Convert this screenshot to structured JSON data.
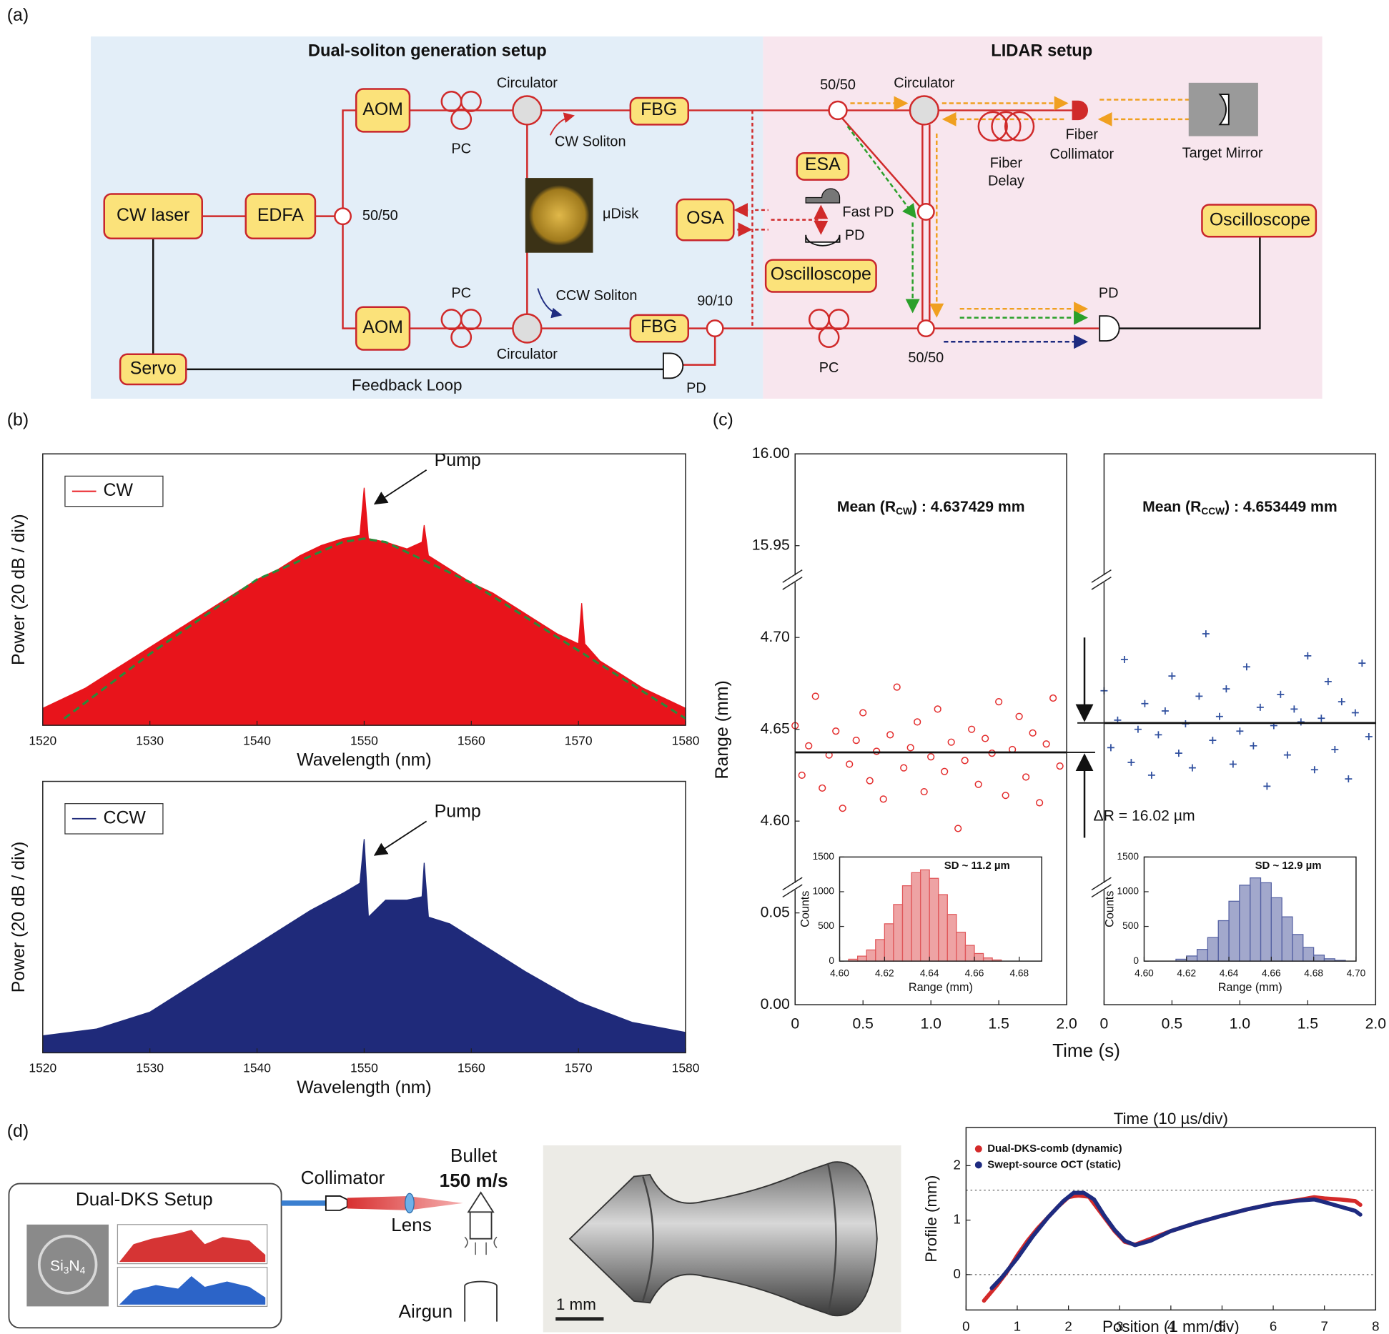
{
  "panel_labels": [
    "(a)",
    "(b)",
    "(c)",
    "(d)"
  ],
  "diagram": {
    "labels": [
      "Dual-soliton generation setup",
      "LIDAR setup",
      "CW laser",
      "EDFA",
      "50/50",
      "AOM",
      "AOM",
      "PC",
      "PC",
      "Circulator",
      "Circulator",
      "CW Soliton",
      "CCW Soliton",
      "μDisk",
      "FBG",
      "FBG",
      "90/10",
      "Servo",
      "Feedback Loop",
      "PD",
      "OSA",
      "ESA",
      "Fast PD",
      "PD",
      "Oscilloscope",
      "50/50",
      "Circulator",
      "Fiber",
      "Delay",
      "Fiber",
      "Collimator",
      "Target Mirror",
      "Oscilloscope",
      "PC",
      "50/50",
      "PD"
    ]
  },
  "panel_d": {
    "setup_title": "Dual-DKS Setup",
    "chip": [
      "Si",
      "3",
      "N",
      "4"
    ],
    "collimator": "Collimator",
    "lens": "Lens",
    "bullet": "Bullet",
    "speed": "150 m/s",
    "airgun": "Airgun",
    "photo_scale": "1 mm"
  },
  "chart_data": [
    {
      "type": "area",
      "xlabel": "Wavelength (nm)",
      "ylabel": "Power (20 dB / div)",
      "annotation": "Pump",
      "xlim": [
        1520,
        1580
      ],
      "xticks": [
        1520,
        1530,
        1540,
        1550,
        1560,
        1570,
        1580
      ],
      "ylim": [
        0,
        80
      ],
      "series": [
        {
          "name": "CW",
          "color": "#e8141b",
          "x": [
            1520,
            1522,
            1524,
            1526,
            1528,
            1530,
            1532,
            1534,
            1536,
            1538,
            1540,
            1542,
            1544,
            1546,
            1548,
            1549.6,
            1550,
            1550.4,
            1552,
            1554,
            1555.4,
            1555.6,
            1556,
            1558,
            1560,
            1562,
            1564,
            1566,
            1568,
            1570,
            1570.3,
            1570.6,
            1572,
            1574,
            1576,
            1578,
            1580
          ],
          "values": [
            5,
            8,
            11,
            15,
            19,
            23,
            27,
            31,
            35,
            39,
            43,
            46,
            50,
            53,
            55,
            56,
            70,
            55,
            54,
            52,
            54,
            59,
            50,
            46,
            42,
            39,
            35,
            31,
            27,
            24,
            36,
            24,
            19,
            15,
            11,
            8,
            5
          ]
        }
      ],
      "fit": {
        "color": "#2a8a3a",
        "x": [
          1522,
          1530,
          1540,
          1548,
          1550,
          1552,
          1560,
          1570,
          1580
        ],
        "values": [
          2,
          21,
          43,
          54,
          55,
          54,
          42,
          22,
          2
        ]
      }
    },
    {
      "type": "area",
      "xlabel": "Wavelength (nm)",
      "ylabel": "Power (20 dB / div)",
      "annotation": "Pump",
      "xlim": [
        1520,
        1580
      ],
      "xticks": [
        1520,
        1530,
        1540,
        1550,
        1560,
        1570,
        1580
      ],
      "ylim": [
        0,
        80
      ],
      "series": [
        {
          "name": "CCW",
          "color": "#1f2a7a",
          "x": [
            1520,
            1525,
            1530,
            1535,
            1540,
            1545,
            1548,
            1549.6,
            1550,
            1550.4,
            1552,
            1554,
            1555.4,
            1555.6,
            1556,
            1558,
            1560,
            1565,
            1570,
            1575,
            1580
          ],
          "values": [
            5,
            7,
            12,
            22,
            32,
            42,
            47,
            50,
            63,
            40,
            45,
            45,
            46,
            56,
            40,
            38,
            34,
            24,
            15,
            9,
            6
          ]
        }
      ]
    },
    {
      "type": "scatter",
      "marker": "circle",
      "color": "#e32b2b",
      "ylabel": "Range (mm)",
      "xlabel": "Time (s)",
      "xlim": [
        0,
        2
      ],
      "xticks": [
        0,
        0.5,
        {
          "value": 1,
          "label": "1.0"
        },
        1.5,
        {
          "value": 2,
          "label": "2.0"
        }
      ],
      "y_segments": [
        [
          0,
          0.0625
        ],
        [
          4.5625,
          4.73
        ],
        [
          15.93,
          16
        ]
      ],
      "yticks": [
        {
          "value": 0,
          "label": "0.00"
        },
        0.05,
        {
          "value": 4.6,
          "label": "4.60"
        },
        4.65,
        {
          "value": 4.7,
          "label": "4.70"
        },
        15.95,
        {
          "value": 16,
          "label": "16.00"
        }
      ],
      "mean": 4.637429,
      "mean_label": [
        "Mean (R",
        "CW",
        ") : 4.637429 mm"
      ],
      "x": [
        0,
        0.05,
        0.1,
        0.15,
        0.2,
        0.25,
        0.3,
        0.35,
        0.4,
        0.45,
        0.5,
        0.55,
        0.6,
        0.65,
        0.7,
        0.75,
        0.8,
        0.85,
        0.9,
        0.95,
        1,
        1.05,
        1.1,
        1.15,
        1.2,
        1.25,
        1.3,
        1.35,
        1.4,
        1.45,
        1.5,
        1.55,
        1.6,
        1.65,
        1.7,
        1.75,
        1.8,
        1.85,
        1.9,
        1.95
      ],
      "values": [
        4.652,
        4.625,
        4.641,
        4.668,
        4.618,
        4.636,
        4.649,
        4.607,
        4.631,
        4.644,
        4.659,
        4.622,
        4.638,
        4.612,
        4.647,
        4.673,
        4.629,
        4.64,
        4.654,
        4.616,
        4.635,
        4.661,
        4.627,
        4.643,
        4.596,
        4.633,
        4.65,
        4.62,
        4.645,
        4.637,
        4.665,
        4.614,
        4.639,
        4.657,
        4.624,
        4.648,
        4.61,
        4.642,
        4.667,
        4.63
      ]
    },
    {
      "type": "scatter",
      "marker": "plus",
      "color": "#2f4f9f",
      "xlim": [
        0,
        2
      ],
      "xticks": [
        0,
        0.5,
        {
          "value": 1,
          "label": "1.0"
        },
        1.5,
        {
          "value": 2,
          "label": "2.0"
        }
      ],
      "y_segments": [
        [
          0,
          0.0625
        ],
        [
          4.5625,
          4.73
        ],
        [
          15.93,
          16
        ]
      ],
      "mean": 4.653449,
      "mean_label": [
        "Mean (R",
        "CCW",
        ") : 4.653449 mm"
      ],
      "annotation": "ΔR = 16.02 µm",
      "x": [
        0,
        0.05,
        0.1,
        0.15,
        0.2,
        0.25,
        0.3,
        0.35,
        0.4,
        0.45,
        0.5,
        0.55,
        0.6,
        0.65,
        0.7,
        0.75,
        0.8,
        0.85,
        0.9,
        0.95,
        1,
        1.05,
        1.1,
        1.15,
        1.2,
        1.25,
        1.3,
        1.35,
        1.4,
        1.45,
        1.5,
        1.55,
        1.6,
        1.65,
        1.7,
        1.75,
        1.8,
        1.85,
        1.9,
        1.95
      ],
      "values": [
        4.671,
        4.64,
        4.655,
        4.688,
        4.632,
        4.65,
        4.664,
        4.625,
        4.647,
        4.66,
        4.679,
        4.637,
        4.653,
        4.629,
        4.668,
        4.702,
        4.644,
        4.657,
        4.672,
        4.631,
        4.649,
        4.684,
        4.641,
        4.662,
        4.619,
        4.652,
        4.669,
        4.636,
        4.661,
        4.654,
        4.69,
        4.628,
        4.656,
        4.676,
        4.639,
        4.665,
        4.623,
        4.659,
        4.686,
        4.646
      ]
    },
    {
      "type": "histogram",
      "color": "#e0575a",
      "xlabel": "Range (mm)",
      "ylabel": "Counts",
      "annotation": "SD ~ 11.2 µm",
      "xlim": [
        4.6,
        4.69
      ],
      "xticks": [
        {
          "value": 4.6,
          "label": "4.60"
        },
        4.62,
        4.64,
        4.66,
        4.68
      ],
      "ylim": [
        0,
        1500
      ],
      "yticks": [
        0,
        500,
        1000,
        1500
      ],
      "bins": [
        4.604,
        4.608,
        4.612,
        4.616,
        4.62,
        4.624,
        4.628,
        4.632,
        4.636,
        4.64,
        4.644,
        4.648,
        4.652,
        4.656,
        4.66,
        4.664,
        4.668,
        4.672
      ],
      "values": [
        28,
        72,
        161,
        311,
        538,
        816,
        1086,
        1274,
        1315,
        1193,
        958,
        673,
        416,
        227,
        110,
        46,
        17
      ]
    },
    {
      "type": "histogram",
      "color": "#5561a3",
      "xlabel": "Range (mm)",
      "ylabel": "Counts",
      "annotation": "SD ~ 12.9 µm",
      "xlim": [
        4.6,
        4.7
      ],
      "xticks": [
        {
          "value": 4.6,
          "label": "4.60"
        },
        4.62,
        4.64,
        4.66,
        4.68,
        {
          "value": 4.7,
          "label": "4.70"
        }
      ],
      "ylim": [
        0,
        1500
      ],
      "yticks": [
        0,
        500,
        1000,
        1500
      ],
      "bins": [
        4.615,
        4.62,
        4.625,
        4.63,
        4.635,
        4.64,
        4.645,
        4.65,
        4.655,
        4.66,
        4.665,
        4.67,
        4.675,
        4.68,
        4.685,
        4.69,
        4.695
      ],
      "values": [
        28,
        74,
        169,
        340,
        583,
        863,
        1094,
        1199,
        1129,
        913,
        638,
        384,
        197,
        87,
        34,
        11
      ]
    },
    {
      "type": "line",
      "title": "Time (10 µs/div)",
      "xlabel": "Position (1 mm/div)",
      "ylabel": "Profile (mm)",
      "xlim": [
        0,
        8
      ],
      "xticks": [
        0,
        1,
        2,
        3,
        4,
        5,
        6,
        7,
        8
      ],
      "ylim": [
        -0.65,
        2.7
      ],
      "yticks": [
        0,
        1,
        2
      ],
      "hlines": [
        0,
        1.55
      ],
      "series": [
        {
          "name": "Dual-DKS-comb (dynamic)",
          "color": "#d42a2a",
          "x": [
            0.35,
            0.6,
            0.8,
            1,
            1.2,
            1.4,
            1.6,
            1.8,
            2,
            2.1,
            2.2,
            2.4,
            2.5,
            2.7,
            2.9,
            3.1,
            3.3,
            3.5,
            4,
            4.5,
            5,
            5.5,
            6,
            6.5,
            6.8,
            7,
            7.3,
            7.6,
            7.7
          ],
          "values": [
            -0.48,
            -0.2,
            0.05,
            0.35,
            0.62,
            0.85,
            1.05,
            1.25,
            1.42,
            1.44,
            1.45,
            1.43,
            1.3,
            1.05,
            0.8,
            0.6,
            0.55,
            0.62,
            0.8,
            0.95,
            1.08,
            1.2,
            1.3,
            1.37,
            1.42,
            1.4,
            1.38,
            1.35,
            1.28
          ]
        },
        {
          "name": "Swept-source OCT (static)",
          "color": "#1e2b80",
          "x": [
            0.5,
            0.7,
            1,
            1.3,
            1.6,
            1.9,
            2.1,
            2.3,
            2.5,
            2.7,
            2.9,
            3.1,
            3.3,
            3.6,
            4,
            4.5,
            5,
            5.5,
            6,
            6.5,
            6.8,
            7,
            7.3,
            7.6,
            7.7
          ],
          "values": [
            -0.25,
            -0.05,
            0.3,
            0.7,
            1.05,
            1.35,
            1.5,
            1.5,
            1.38,
            1.08,
            0.82,
            0.62,
            0.54,
            0.62,
            0.8,
            0.95,
            1.08,
            1.2,
            1.3,
            1.36,
            1.38,
            1.33,
            1.25,
            1.17,
            1.1
          ]
        }
      ]
    }
  ]
}
